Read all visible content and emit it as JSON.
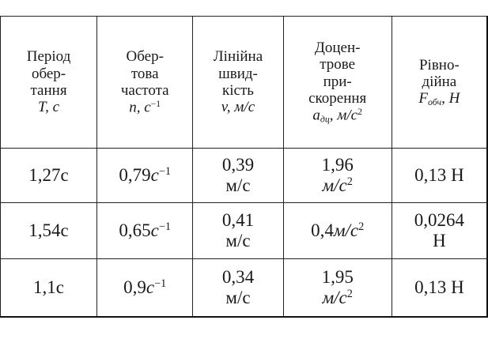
{
  "table": {
    "header": [
      [
        [
          "Період"
        ],
        [
          "обер-"
        ],
        [
          "тання"
        ],
        [
          {
            "text": "T, c",
            "italic": true
          }
        ]
      ],
      [
        [
          "Обер-"
        ],
        [
          "това"
        ],
        [
          "частота"
        ],
        [
          {
            "text": "n, c",
            "italic": true
          },
          {
            "text": "−1",
            "script": "sup"
          }
        ]
      ],
      [
        [
          "Лінійна"
        ],
        [
          "швид-"
        ],
        [
          "кість"
        ],
        [
          {
            "text": "v, м/с",
            "italic": true
          }
        ]
      ],
      [
        [
          "Доцен-"
        ],
        [
          "трове"
        ],
        [
          "при-"
        ],
        [
          "скорення"
        ],
        [
          {
            "text": "a",
            "italic": true
          },
          {
            "text": "дц",
            "italic": true,
            "script": "sub"
          },
          {
            "text": ", м/с",
            "italic": true
          },
          {
            "text": "2",
            "script": "sup"
          }
        ]
      ],
      [
        [
          "Рівно-"
        ],
        [
          "дійна"
        ],
        [
          {
            "text": "F",
            "italic": true
          },
          {
            "text": "обч",
            "italic": true,
            "script": "sub"
          },
          {
            "text": ", H",
            "italic": true
          }
        ]
      ]
    ],
    "rows": [
      [
        [
          [
            "1,27с"
          ]
        ],
        [
          [
            "0,79",
            {
              "text": "c",
              "italic": true
            },
            {
              "text": "−1",
              "script": "sup"
            }
          ]
        ],
        [
          [
            "0,39"
          ],
          [
            "м/с"
          ]
        ],
        [
          [
            "1,96"
          ],
          [
            {
              "text": "м/с",
              "italic": true
            },
            {
              "text": "2",
              "script": "sup"
            }
          ]
        ],
        [
          [
            "0,13 Н"
          ]
        ]
      ],
      [
        [
          [
            "1,54с"
          ]
        ],
        [
          [
            "0,65",
            {
              "text": "c",
              "italic": true
            },
            {
              "text": "−1",
              "script": "sup"
            }
          ]
        ],
        [
          [
            "0,41"
          ],
          [
            "м/с"
          ]
        ],
        [
          [
            "0,4",
            {
              "text": "м/с",
              "italic": true
            },
            {
              "text": "2",
              "script": "sup"
            }
          ]
        ],
        [
          [
            "0,0264"
          ],
          [
            "Н"
          ]
        ]
      ],
      [
        [
          [
            "1,1с"
          ]
        ],
        [
          [
            "0,9",
            {
              "text": "c",
              "italic": true
            },
            {
              "text": "−1",
              "script": "sup"
            }
          ]
        ],
        [
          [
            "0,34"
          ],
          [
            "м/с"
          ]
        ],
        [
          [
            "1,95"
          ],
          [
            {
              "text": "м/с",
              "italic": true
            },
            {
              "text": "2",
              "script": "sup"
            }
          ]
        ],
        [
          [
            "0,13 Н"
          ]
        ]
      ]
    ]
  }
}
